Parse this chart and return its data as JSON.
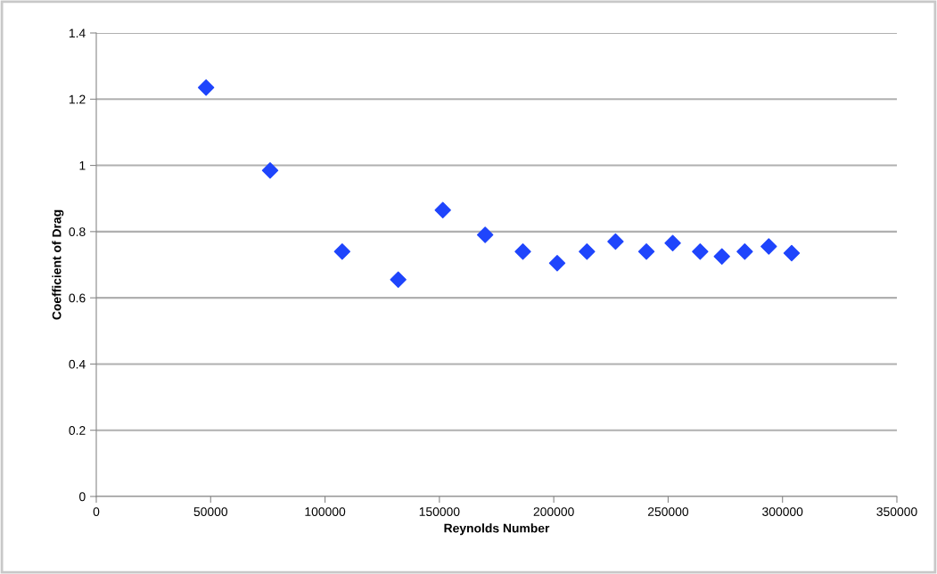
{
  "chart_data": {
    "type": "scatter",
    "xlabel": "Reynolds Number",
    "ylabel": "Coefficient of Drag",
    "x": [
      48000,
      76000,
      107500,
      132000,
      151500,
      170000,
      186500,
      201500,
      214500,
      227000,
      240500,
      252000,
      264000,
      273500,
      283500,
      294000,
      304000
    ],
    "series": [
      {
        "color": "#1f45fc",
        "values": [
          1.235,
          0.985,
          0.74,
          0.655,
          0.865,
          0.79,
          0.74,
          0.705,
          0.74,
          0.77,
          0.74,
          0.765,
          0.74,
          0.725,
          0.74,
          0.755,
          0.735
        ]
      }
    ],
    "xlim": [
      0,
      350000
    ],
    "xticks": [
      0,
      50000,
      100000,
      150000,
      200000,
      250000,
      300000,
      350000
    ],
    "ylim": [
      0,
      1.4
    ],
    "yticks": [
      0,
      0.2,
      0.4,
      0.6,
      0.8,
      1,
      1.2,
      1.4
    ],
    "grid": "y",
    "marker": "diamond",
    "legend": false
  }
}
